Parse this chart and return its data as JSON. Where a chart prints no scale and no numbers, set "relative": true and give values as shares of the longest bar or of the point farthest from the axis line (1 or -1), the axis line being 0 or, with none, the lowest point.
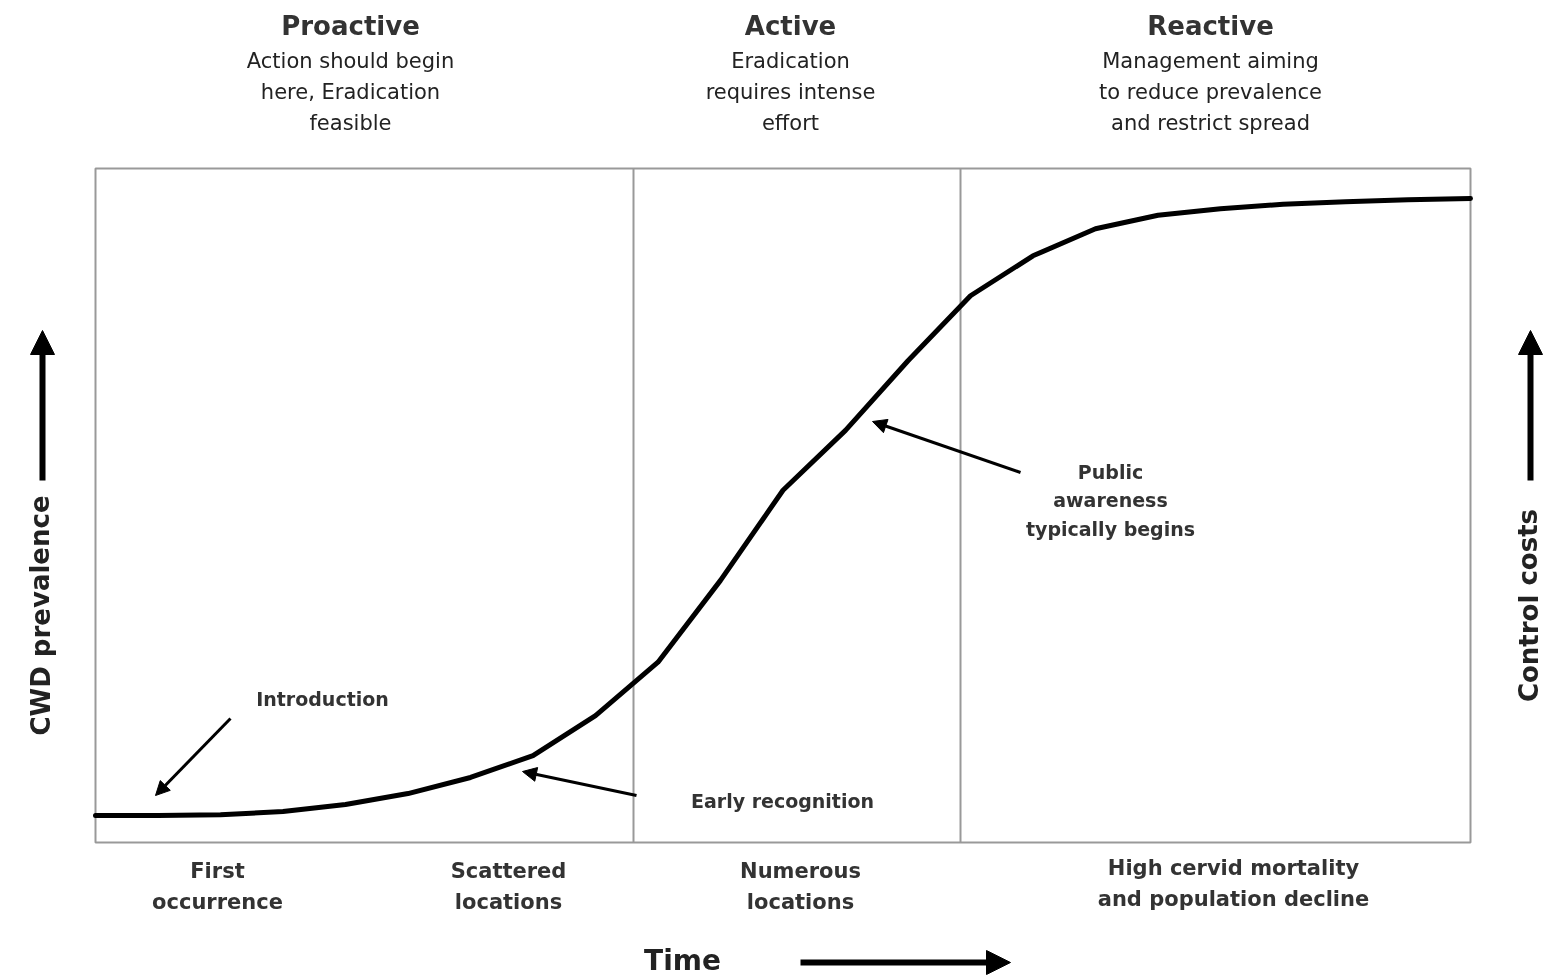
{
  "chart_data": {
    "type": "line",
    "relative": true,
    "xlabel": "Time",
    "ylabel": "CWD prevalence",
    "y2label": "Control costs",
    "categories": [
      null,
      null,
      null,
      null,
      null,
      null,
      null,
      null,
      null,
      null,
      null,
      null,
      null,
      null,
      null,
      null,
      null,
      null,
      null,
      null,
      null,
      null,
      null
    ],
    "series": [
      {
        "color": "#000000",
        "values": [
          0.042,
          0.042,
          0.043,
          0.048,
          0.059,
          0.076,
          0.101,
          0.135,
          0.197,
          0.28,
          0.407,
          0.547,
          0.64,
          0.748,
          0.849,
          0.911,
          0.953,
          0.974,
          0.984,
          0.991,
          0.995,
          0.998,
          1
        ]
      }
    ],
    "annotations": [
      "Proactive",
      "Action should begin\nhere, Eradication\nfeasible",
      "Active",
      "Eradication\nrequires intense\neffort",
      "Reactive",
      "Management aiming\nto reduce prevalence\nand restrict spread",
      "Introduction",
      "Early recognition",
      "Public\nawareness\ntypically begins",
      "First\noccurrence",
      "Scattered\nlocations",
      "Numerous\nlocations",
      "High cervid mortality\nand population decline"
    ],
    "grid": false
  }
}
